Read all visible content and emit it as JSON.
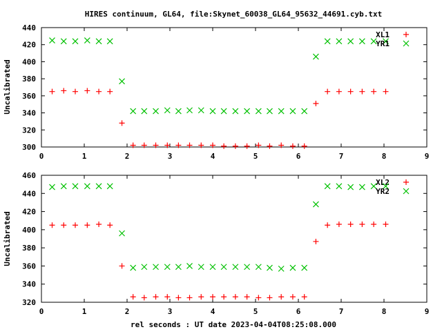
{
  "chart_data": [
    {
      "type": "scatter",
      "title": "HIRES continuum, GL64, file:Skynet_60038_GL64_95632_44691.cyb.txt",
      "xlabel": "",
      "ylabel": "Uncalibrated",
      "xlim": [
        0,
        9
      ],
      "ylim": [
        300,
        440
      ],
      "xticks": [
        "0",
        "1",
        "2",
        "3",
        "4",
        "5",
        "6",
        "7",
        "8",
        "9"
      ],
      "yticks": [
        "300",
        "320",
        "340",
        "360",
        "380",
        "400",
        "420",
        "440"
      ],
      "legend_position": "top-right",
      "x": [
        0.25,
        0.52,
        0.79,
        1.07,
        1.34,
        1.6,
        1.88,
        2.14,
        2.4,
        2.67,
        2.94,
        3.2,
        3.46,
        3.73,
        4.0,
        4.26,
        4.53,
        4.8,
        5.07,
        5.33,
        5.6,
        5.87,
        6.14,
        6.41,
        6.68,
        6.95,
        7.22,
        7.49,
        7.76,
        8.04
      ],
      "series": [
        {
          "name": "XL1",
          "color": "#ff0000",
          "marker": "plus",
          "values": [
            365,
            366,
            365,
            366,
            365,
            365,
            328,
            302,
            302,
            302,
            302,
            302,
            302,
            302,
            302,
            301,
            301,
            301,
            302,
            301,
            302,
            301,
            301,
            351,
            365,
            365,
            365,
            365,
            365,
            365
          ]
        },
        {
          "name": "YR1",
          "color": "#00c000",
          "marker": "cross",
          "values": [
            425,
            424,
            424,
            425,
            424,
            424,
            377,
            342,
            342,
            342,
            343,
            342,
            343,
            343,
            342,
            342,
            342,
            342,
            342,
            342,
            342,
            342,
            342,
            406,
            424,
            424,
            424,
            424,
            424,
            424
          ]
        }
      ]
    },
    {
      "type": "scatter",
      "xlabel": "rel seconds : UT date 2023-04-04T08:25:08.000",
      "ylabel": "Uncalibrated",
      "xlim": [
        0,
        9
      ],
      "ylim": [
        320,
        460
      ],
      "xticks": [
        "0",
        "1",
        "2",
        "3",
        "4",
        "5",
        "6",
        "7",
        "8",
        "9"
      ],
      "yticks": [
        "320",
        "340",
        "360",
        "380",
        "400",
        "420",
        "440",
        "460"
      ],
      "legend_position": "top-right",
      "x": [
        0.25,
        0.52,
        0.79,
        1.07,
        1.34,
        1.6,
        1.88,
        2.14,
        2.4,
        2.67,
        2.94,
        3.2,
        3.46,
        3.73,
        4.0,
        4.26,
        4.53,
        4.8,
        5.07,
        5.33,
        5.6,
        5.87,
        6.14,
        6.41,
        6.68,
        6.95,
        7.22,
        7.49,
        7.76,
        8.04
      ],
      "series": [
        {
          "name": "XL2",
          "color": "#ff0000",
          "marker": "plus",
          "values": [
            405,
            405,
            405,
            405,
            406,
            405,
            360,
            326,
            325,
            326,
            326,
            325,
            325,
            326,
            326,
            326,
            326,
            326,
            325,
            325,
            326,
            326,
            326,
            387,
            405,
            406,
            406,
            406,
            406,
            406
          ]
        },
        {
          "name": "YR2",
          "color": "#00c000",
          "marker": "cross",
          "values": [
            447,
            448,
            448,
            448,
            448,
            448,
            396,
            358,
            359,
            359,
            359,
            359,
            360,
            359,
            359,
            359,
            359,
            359,
            359,
            358,
            357,
            358,
            358,
            428,
            448,
            448,
            447,
            447,
            448,
            448
          ]
        }
      ]
    }
  ]
}
